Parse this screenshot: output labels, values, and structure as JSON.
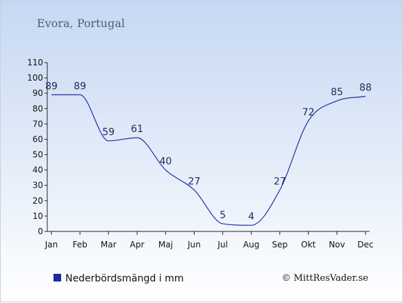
{
  "chart_data": {
    "type": "line",
    "title": "Evora, Portugal",
    "categories": [
      "Jan",
      "Feb",
      "Mar",
      "Apr",
      "Maj",
      "Jun",
      "Jul",
      "Aug",
      "Sep",
      "Okt",
      "Nov",
      "Dec"
    ],
    "series": [
      {
        "name": "Nederbördsmängd i mm",
        "values": [
          89,
          89,
          59,
          61,
          40,
          27,
          5,
          4,
          27,
          72,
          85,
          88
        ]
      }
    ],
    "ylim": [
      0,
      110
    ],
    "yticks": [
      0,
      10,
      20,
      30,
      40,
      50,
      60,
      70,
      80,
      90,
      100,
      110
    ],
    "legend_position": "bottom-left",
    "series_color": "#1f2fa0",
    "grid": false
  },
  "copyright": "© MittResVader.se"
}
